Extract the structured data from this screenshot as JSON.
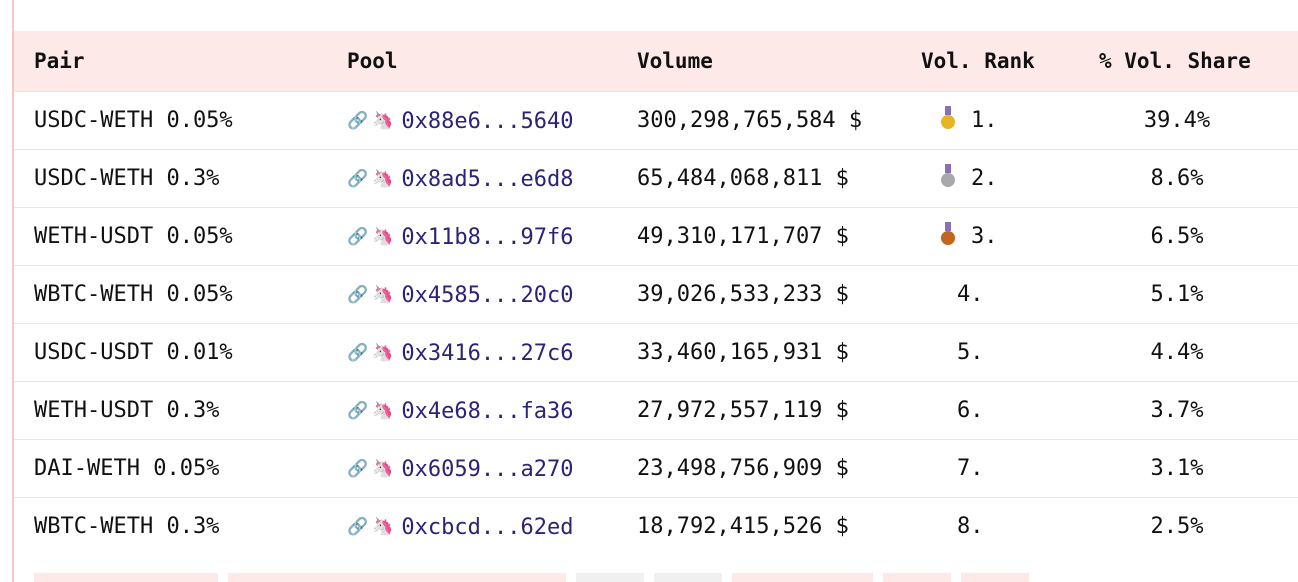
{
  "table": {
    "headers": {
      "pair": "Pair",
      "pool": "Pool",
      "volume": "Volume",
      "rank": "Vol. Rank",
      "share": "% Vol. Share"
    },
    "rows": [
      {
        "pair": "USDC-WETH 0.05%",
        "address": "0x88e6...5640",
        "volume": "300,298,765,584 $",
        "medal": "gold-medal-icon",
        "rank": "1.",
        "share": "39.4%"
      },
      {
        "pair": "USDC-WETH 0.3%",
        "address": "0x8ad5...e6d8",
        "volume": "65,484,068,811 $",
        "medal": "silver-medal-icon",
        "rank": "2.",
        "share": "8.6%"
      },
      {
        "pair": "WETH-USDT 0.05%",
        "address": "0x11b8...97f6",
        "volume": "49,310,171,707 $",
        "medal": "bronze-medal-icon",
        "rank": "3.",
        "share": "6.5%"
      },
      {
        "pair": "WBTC-WETH 0.05%",
        "address": "0x4585...20c0",
        "volume": "39,026,533,233 $",
        "medal": "",
        "rank": "4.",
        "share": "5.1%"
      },
      {
        "pair": "USDC-USDT 0.01%",
        "address": "0x3416...27c6",
        "volume": "33,460,165,931 $",
        "medal": "",
        "rank": "5.",
        "share": "4.4%"
      },
      {
        "pair": "WETH-USDT 0.3%",
        "address": "0x4e68...fa36",
        "volume": "27,972,557,119 $",
        "medal": "",
        "rank": "6.",
        "share": "3.7%"
      },
      {
        "pair": "DAI-WETH 0.05%",
        "address": "0x6059...a270",
        "volume": "23,498,756,909 $",
        "medal": "",
        "rank": "7.",
        "share": "3.1%"
      },
      {
        "pair": "WBTC-WETH 0.3%",
        "address": "0xcbcd...62ed",
        "volume": "18,792,415,526 $",
        "medal": "",
        "rank": "8.",
        "share": "2.5%"
      }
    ]
  },
  "icons": {
    "link": "link-icon",
    "unicorn": "unicorn-icon"
  },
  "colors": {
    "header_bg": "#fde9e7",
    "address": "#2a2478",
    "gold": "#e7b424",
    "silver": "#a9a9ad",
    "bronze": "#c1651f"
  }
}
